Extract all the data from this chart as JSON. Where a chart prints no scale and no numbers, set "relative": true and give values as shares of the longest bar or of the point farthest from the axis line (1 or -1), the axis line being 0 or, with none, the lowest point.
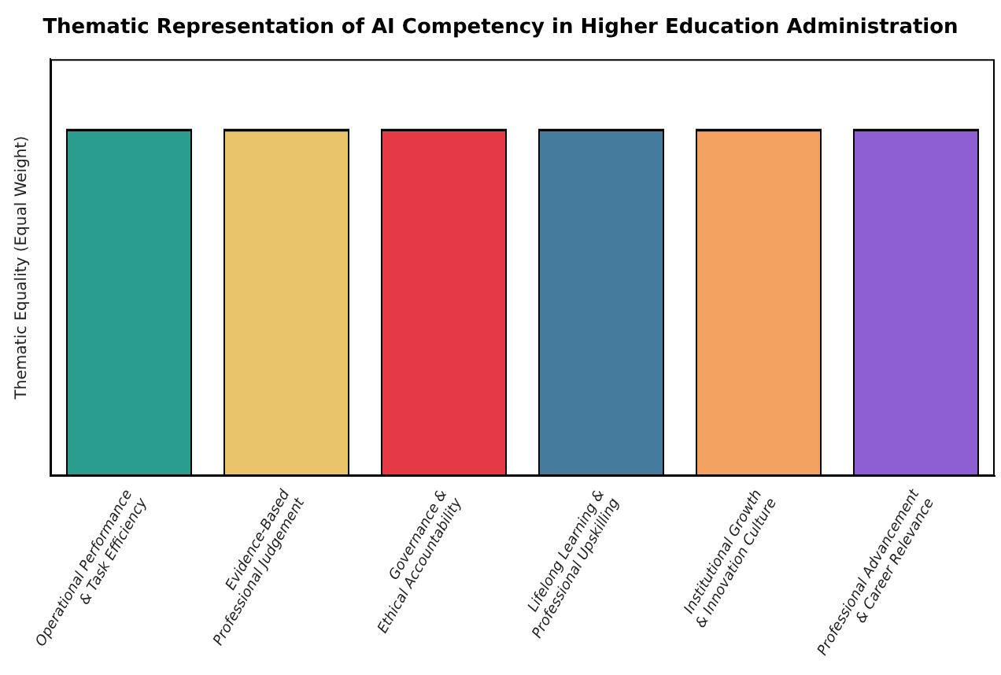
{
  "chart_data": {
    "type": "bar",
    "title": "Thematic Representation of AI Competency in Higher Education Administration",
    "ylabel": "Thematic Equality (Equal Weight)",
    "categories": [
      "Operational Performance\n& Task Efficiency",
      "Evidence-Based\nProfessional Judgement",
      "Governance &\nEthical Accountability",
      "Lifelong Learning &\nProfessional Upskilling",
      "Institutional Growth\n& Innovation Culture",
      "Professional Advancement\n& Career Relevance"
    ],
    "values": [
      1,
      1,
      1,
      1,
      1,
      1
    ],
    "colors": [
      "#2a9d8f",
      "#e9c46a",
      "#e63946",
      "#457b9d",
      "#f4a261",
      "#8d5fd3"
    ],
    "relative": true,
    "grid": false,
    "legend": false
  }
}
